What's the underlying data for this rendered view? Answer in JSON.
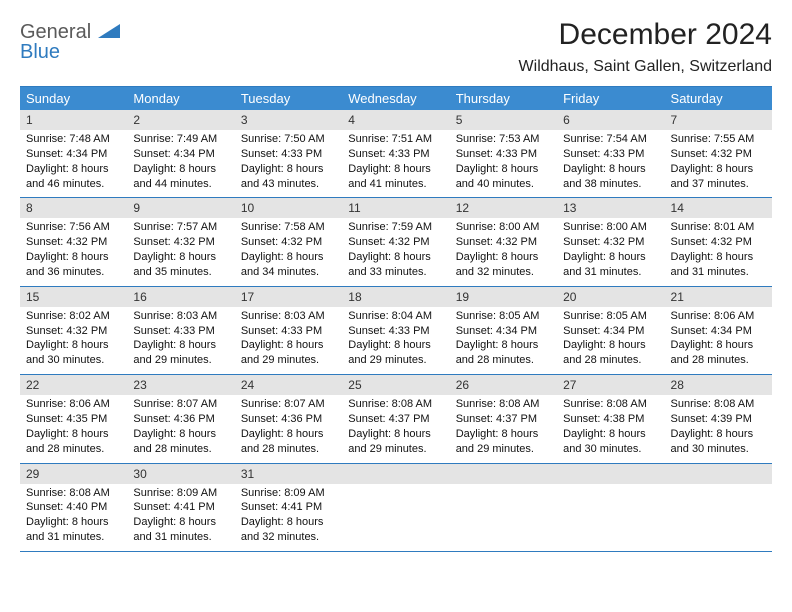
{
  "logo": {
    "word1": "General",
    "word2": "Blue",
    "color1": "#5a5a5a",
    "color2": "#2f7bbf"
  },
  "title": "December 2024",
  "location": "Wildhaus, Saint Gallen, Switzerland",
  "accent_color": "#3b8bd0",
  "border_color": "#2f7bbf",
  "daynum_bg": "#e4e4e4",
  "day_headers": [
    "Sunday",
    "Monday",
    "Tuesday",
    "Wednesday",
    "Thursday",
    "Friday",
    "Saturday"
  ],
  "weeks": [
    [
      {
        "num": "1",
        "sunrise": "Sunrise: 7:48 AM",
        "sunset": "Sunset: 4:34 PM",
        "daylight": "Daylight: 8 hours and 46 minutes."
      },
      {
        "num": "2",
        "sunrise": "Sunrise: 7:49 AM",
        "sunset": "Sunset: 4:34 PM",
        "daylight": "Daylight: 8 hours and 44 minutes."
      },
      {
        "num": "3",
        "sunrise": "Sunrise: 7:50 AM",
        "sunset": "Sunset: 4:33 PM",
        "daylight": "Daylight: 8 hours and 43 minutes."
      },
      {
        "num": "4",
        "sunrise": "Sunrise: 7:51 AM",
        "sunset": "Sunset: 4:33 PM",
        "daylight": "Daylight: 8 hours and 41 minutes."
      },
      {
        "num": "5",
        "sunrise": "Sunrise: 7:53 AM",
        "sunset": "Sunset: 4:33 PM",
        "daylight": "Daylight: 8 hours and 40 minutes."
      },
      {
        "num": "6",
        "sunrise": "Sunrise: 7:54 AM",
        "sunset": "Sunset: 4:33 PM",
        "daylight": "Daylight: 8 hours and 38 minutes."
      },
      {
        "num": "7",
        "sunrise": "Sunrise: 7:55 AM",
        "sunset": "Sunset: 4:32 PM",
        "daylight": "Daylight: 8 hours and 37 minutes."
      }
    ],
    [
      {
        "num": "8",
        "sunrise": "Sunrise: 7:56 AM",
        "sunset": "Sunset: 4:32 PM",
        "daylight": "Daylight: 8 hours and 36 minutes."
      },
      {
        "num": "9",
        "sunrise": "Sunrise: 7:57 AM",
        "sunset": "Sunset: 4:32 PM",
        "daylight": "Daylight: 8 hours and 35 minutes."
      },
      {
        "num": "10",
        "sunrise": "Sunrise: 7:58 AM",
        "sunset": "Sunset: 4:32 PM",
        "daylight": "Daylight: 8 hours and 34 minutes."
      },
      {
        "num": "11",
        "sunrise": "Sunrise: 7:59 AM",
        "sunset": "Sunset: 4:32 PM",
        "daylight": "Daylight: 8 hours and 33 minutes."
      },
      {
        "num": "12",
        "sunrise": "Sunrise: 8:00 AM",
        "sunset": "Sunset: 4:32 PM",
        "daylight": "Daylight: 8 hours and 32 minutes."
      },
      {
        "num": "13",
        "sunrise": "Sunrise: 8:00 AM",
        "sunset": "Sunset: 4:32 PM",
        "daylight": "Daylight: 8 hours and 31 minutes."
      },
      {
        "num": "14",
        "sunrise": "Sunrise: 8:01 AM",
        "sunset": "Sunset: 4:32 PM",
        "daylight": "Daylight: 8 hours and 31 minutes."
      }
    ],
    [
      {
        "num": "15",
        "sunrise": "Sunrise: 8:02 AM",
        "sunset": "Sunset: 4:32 PM",
        "daylight": "Daylight: 8 hours and 30 minutes."
      },
      {
        "num": "16",
        "sunrise": "Sunrise: 8:03 AM",
        "sunset": "Sunset: 4:33 PM",
        "daylight": "Daylight: 8 hours and 29 minutes."
      },
      {
        "num": "17",
        "sunrise": "Sunrise: 8:03 AM",
        "sunset": "Sunset: 4:33 PM",
        "daylight": "Daylight: 8 hours and 29 minutes."
      },
      {
        "num": "18",
        "sunrise": "Sunrise: 8:04 AM",
        "sunset": "Sunset: 4:33 PM",
        "daylight": "Daylight: 8 hours and 29 minutes."
      },
      {
        "num": "19",
        "sunrise": "Sunrise: 8:05 AM",
        "sunset": "Sunset: 4:34 PM",
        "daylight": "Daylight: 8 hours and 28 minutes."
      },
      {
        "num": "20",
        "sunrise": "Sunrise: 8:05 AM",
        "sunset": "Sunset: 4:34 PM",
        "daylight": "Daylight: 8 hours and 28 minutes."
      },
      {
        "num": "21",
        "sunrise": "Sunrise: 8:06 AM",
        "sunset": "Sunset: 4:34 PM",
        "daylight": "Daylight: 8 hours and 28 minutes."
      }
    ],
    [
      {
        "num": "22",
        "sunrise": "Sunrise: 8:06 AM",
        "sunset": "Sunset: 4:35 PM",
        "daylight": "Daylight: 8 hours and 28 minutes."
      },
      {
        "num": "23",
        "sunrise": "Sunrise: 8:07 AM",
        "sunset": "Sunset: 4:36 PM",
        "daylight": "Daylight: 8 hours and 28 minutes."
      },
      {
        "num": "24",
        "sunrise": "Sunrise: 8:07 AM",
        "sunset": "Sunset: 4:36 PM",
        "daylight": "Daylight: 8 hours and 28 minutes."
      },
      {
        "num": "25",
        "sunrise": "Sunrise: 8:08 AM",
        "sunset": "Sunset: 4:37 PM",
        "daylight": "Daylight: 8 hours and 29 minutes."
      },
      {
        "num": "26",
        "sunrise": "Sunrise: 8:08 AM",
        "sunset": "Sunset: 4:37 PM",
        "daylight": "Daylight: 8 hours and 29 minutes."
      },
      {
        "num": "27",
        "sunrise": "Sunrise: 8:08 AM",
        "sunset": "Sunset: 4:38 PM",
        "daylight": "Daylight: 8 hours and 30 minutes."
      },
      {
        "num": "28",
        "sunrise": "Sunrise: 8:08 AM",
        "sunset": "Sunset: 4:39 PM",
        "daylight": "Daylight: 8 hours and 30 minutes."
      }
    ],
    [
      {
        "num": "29",
        "sunrise": "Sunrise: 8:08 AM",
        "sunset": "Sunset: 4:40 PM",
        "daylight": "Daylight: 8 hours and 31 minutes."
      },
      {
        "num": "30",
        "sunrise": "Sunrise: 8:09 AM",
        "sunset": "Sunset: 4:41 PM",
        "daylight": "Daylight: 8 hours and 31 minutes."
      },
      {
        "num": "31",
        "sunrise": "Sunrise: 8:09 AM",
        "sunset": "Sunset: 4:41 PM",
        "daylight": "Daylight: 8 hours and 32 minutes."
      },
      {
        "blank": true
      },
      {
        "blank": true
      },
      {
        "blank": true
      },
      {
        "blank": true
      }
    ]
  ]
}
